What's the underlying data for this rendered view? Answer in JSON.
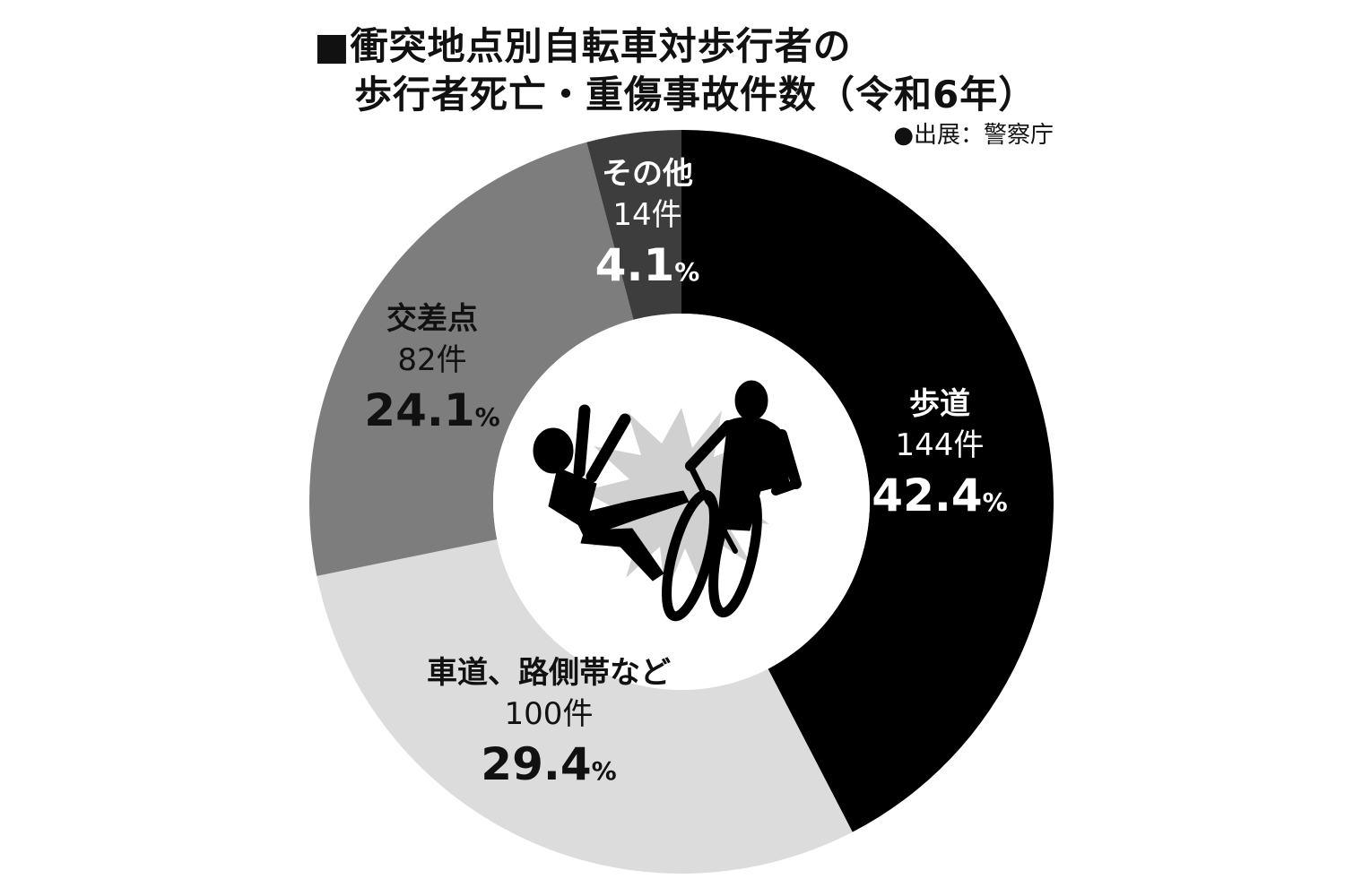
{
  "title_lines": [
    "■衝突地点別自転車対歩行者の",
    "歩行者死亡・重傷事故件数（令和6年）"
  ],
  "source": "●出展：警察庁",
  "colors": {
    "sidewalk": "#000000",
    "roadway": "#dcdcdc",
    "intersection": "#7d7d7d",
    "other": "#3d3d3d",
    "label_light": "#ffffff",
    "label_dark": "#111111"
  },
  "center_illustration": "pedestrian-and-cyclist-collision-icon",
  "chart_data": {
    "type": "pie",
    "donut": true,
    "start_angle_deg": 0,
    "direction": "clockwise",
    "slices": [
      {
        "name": "歩道",
        "count": 144,
        "count_label": "144件",
        "percent": 42.4,
        "percent_label": "42.4",
        "percent_unit": "%"
      },
      {
        "name": "車道、路側帯など",
        "count": 100,
        "count_label": "100件",
        "percent": 29.4,
        "percent_label": "29.4",
        "percent_unit": "%"
      },
      {
        "name": "交差点",
        "count": 82,
        "count_label": "82件",
        "percent": 24.1,
        "percent_label": "24.1",
        "percent_unit": "%"
      },
      {
        "name": "その他",
        "count": 14,
        "count_label": "14件",
        "percent": 4.1,
        "percent_label": "4.1",
        "percent_unit": "%"
      }
    ]
  }
}
